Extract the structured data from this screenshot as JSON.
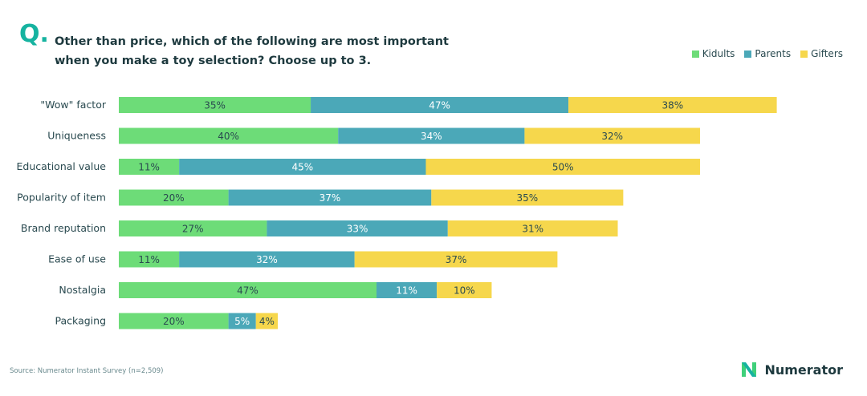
{
  "header": {
    "q_letter": "Q",
    "title_line1": "Other than price, which of the following are most important",
    "title_line2": "when you make a toy selection? Choose up to 3."
  },
  "footer": {
    "source": "Source: Numerator Instant Survey (n=2,509)",
    "brand_name": "Numerator",
    "brand_icon": "numerator-n-logo"
  },
  "colors": {
    "kidults": "#6ddc78",
    "parents": "#4ba8b8",
    "gifters": "#f6d74c",
    "label_text": "#2a4a50",
    "accent": "#16b3a0"
  },
  "chart_data": {
    "type": "bar",
    "orientation": "horizontal",
    "stacked": true,
    "legend_placement": "top-right",
    "grid": false,
    "categories": [
      "\"Wow\" factor",
      "Uniqueness",
      "Educational value",
      "Popularity of item",
      "Brand reputation",
      "Ease of use",
      "Nostalgia",
      "Packaging"
    ],
    "series": [
      {
        "name": "Kidults",
        "color": "#6ddc78",
        "values": [
          35,
          40,
          11,
          20,
          27,
          11,
          47,
          20
        ]
      },
      {
        "name": "Parents",
        "color": "#4ba8b8",
        "values": [
          47,
          34,
          45,
          37,
          33,
          32,
          11,
          5
        ]
      },
      {
        "name": "Gifters",
        "color": "#f6d74c",
        "values": [
          38,
          32,
          50,
          35,
          31,
          37,
          10,
          4
        ]
      }
    ],
    "value_suffix": "%",
    "xlim": [
      0,
      120
    ]
  }
}
